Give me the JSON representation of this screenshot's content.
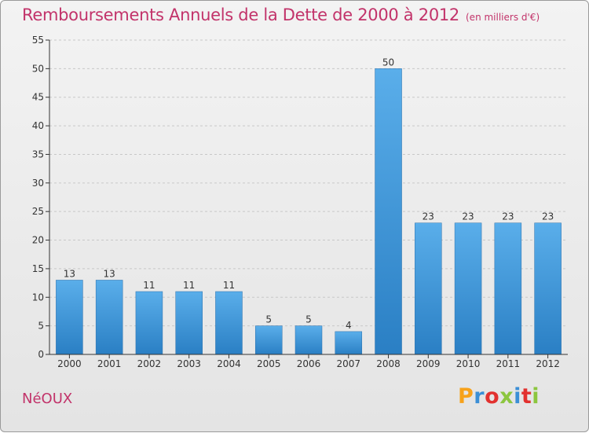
{
  "header": {
    "title": "Remboursements Annuels de la Dette de 2000 à 2012",
    "subtitle": "(en milliers d'€)"
  },
  "footer": {
    "town": "NéOUX",
    "brand": "Proxiti",
    "brand_colors": [
      "#f7a21b",
      "#3b8fd6",
      "#e2312f",
      "#8cc63f",
      "#3b8fd6",
      "#e2312f",
      "#8cc63f"
    ]
  },
  "colors": {
    "accent": "#c2336a",
    "bar_top": "#5aaeea",
    "bar_bottom": "#2a7fc4",
    "axis": "#333333",
    "grid": "#c8c8c8"
  },
  "chart_data": {
    "type": "bar",
    "title": "Remboursements Annuels de la Dette de 2000 à 2012",
    "subtitle": "(en milliers d'€)",
    "xlabel": "",
    "ylabel": "",
    "categories": [
      "2000",
      "2001",
      "2002",
      "2003",
      "2004",
      "2005",
      "2006",
      "2007",
      "2008",
      "2009",
      "2010",
      "2011",
      "2012"
    ],
    "values": [
      13,
      13,
      11,
      11,
      11,
      5,
      5,
      4,
      50,
      23,
      23,
      23,
      23
    ],
    "ylim": [
      0,
      55
    ],
    "yticks": [
      0,
      5,
      10,
      15,
      20,
      25,
      30,
      35,
      40,
      45,
      50,
      55
    ],
    "grid": "horizontal dashed",
    "legend": "none"
  }
}
